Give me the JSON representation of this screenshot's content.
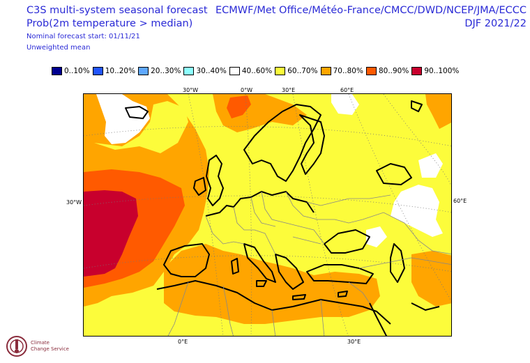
{
  "title": {
    "line1": "C3S multi-system seasonal forecast",
    "line2": "Prob(2m temperature > median)",
    "line3": "Nominal forecast start: 01/11/21",
    "line4": "Unweighted mean"
  },
  "header_right": {
    "centres": "ECMWF/Met Office/Météo-France/CMCC/DWD/NCEP/JMA/ECCC",
    "season": "DJF 2021/22"
  },
  "legend": [
    {
      "label": "0..10%",
      "color": "#00008f"
    },
    {
      "label": "10..20%",
      "color": "#2255ff"
    },
    {
      "label": "20..30%",
      "color": "#5fa8ff"
    },
    {
      "label": "30..40%",
      "color": "#8effff"
    },
    {
      "label": "40..60%",
      "color": "#ffffff"
    },
    {
      "label": "60..70%",
      "color": "#fcfc3b"
    },
    {
      "label": "70..80%",
      "color": "#ffa500"
    },
    {
      "label": "80..90%",
      "color": "#ff5a00"
    },
    {
      "label": "90..100%",
      "color": "#c8002d"
    }
  ],
  "axis_labels": {
    "top_30w": "30°W",
    "top_0w": "0°W",
    "top_30e": "30°E",
    "top_60e": "60°E",
    "left_30w": "30°W",
    "right_60e": "60°E",
    "bottom_0e": "0°E",
    "bottom_30e": "30°E"
  },
  "logo": {
    "line1": "Climate",
    "line2": "Change Service"
  }
}
